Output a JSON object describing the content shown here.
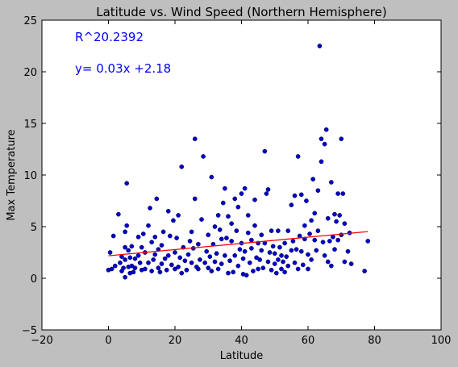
{
  "chart_data": {
    "type": "scatter",
    "title": "Latitude vs. Wind Speed (Northern Hemisphere)",
    "xlabel": "Latitude",
    "ylabel": "Max Temperature",
    "xlim": [
      -20,
      100
    ],
    "ylim": [
      -5,
      25
    ],
    "xticks": [
      "−20",
      "0",
      "20",
      "40",
      "60",
      "80",
      "100"
    ],
    "yticks": [
      "−5",
      "0",
      "5",
      "10",
      "15",
      "20",
      "25"
    ],
    "grid": false,
    "point_color": "#0000cc",
    "regression_color": "#ff0000",
    "annotation_color": "#0000ff",
    "annotations": [
      "R^20.2392",
      "y= 0.03x +2.18"
    ],
    "regression": {
      "slope": 0.03,
      "intercept": 2.18,
      "x_range": [
        0,
        78
      ]
    },
    "series": [
      {
        "points": [
          [
            0,
            0.8
          ],
          [
            0.5,
            2.5
          ],
          [
            1,
            0.9
          ],
          [
            1.5,
            4.1
          ],
          [
            2,
            1.2
          ],
          [
            3,
            6.2
          ],
          [
            3.5,
            1.5
          ],
          [
            4,
            0.7
          ],
          [
            4,
            2.1
          ],
          [
            4.5,
            1.0
          ],
          [
            5,
            0.1
          ],
          [
            5,
            1.8
          ],
          [
            5,
            3.0
          ],
          [
            5,
            4.5
          ],
          [
            5.5,
            5.1
          ],
          [
            5.5,
            9.2
          ],
          [
            6,
            2.7
          ],
          [
            6,
            1.1
          ],
          [
            6.5,
            0.5
          ],
          [
            6.5,
            2.0
          ],
          [
            7,
            1.2
          ],
          [
            7,
            3.1
          ],
          [
            7.5,
            0.6
          ],
          [
            8,
            1.9
          ],
          [
            8,
            1.0
          ],
          [
            9,
            2.2
          ],
          [
            9,
            4.0
          ],
          [
            9.5,
            1.5
          ],
          [
            10,
            0.8
          ],
          [
            10,
            3.0
          ],
          [
            10.5,
            4.3
          ],
          [
            11,
            0.9
          ],
          [
            11,
            2.5
          ],
          [
            12,
            1.5
          ],
          [
            12,
            5.1
          ],
          [
            12.5,
            6.8
          ],
          [
            13,
            0.7
          ],
          [
            13,
            3.5
          ],
          [
            13.5,
            1.8
          ],
          [
            14,
            2.3
          ],
          [
            14,
            4.0
          ],
          [
            14.5,
            7.7
          ],
          [
            15,
            1.0
          ],
          [
            15,
            2.8
          ],
          [
            15.5,
            0.6
          ],
          [
            16,
            1.4
          ],
          [
            16,
            3.2
          ],
          [
            16.5,
            4.5
          ],
          [
            17,
            1.9
          ],
          [
            17.5,
            0.8
          ],
          [
            18,
            6.5
          ],
          [
            18,
            2.2
          ],
          [
            18.5,
            4.1
          ],
          [
            19,
            1.3
          ],
          [
            19.5,
            5.6
          ],
          [
            20,
            0.9
          ],
          [
            20,
            2.5
          ],
          [
            20.5,
            3.9
          ],
          [
            21,
            1.1
          ],
          [
            21,
            6.1
          ],
          [
            21.5,
            2.0
          ],
          [
            22,
            10.8
          ],
          [
            22,
            0.5
          ],
          [
            22.5,
            3.0
          ],
          [
            23,
            1.7
          ],
          [
            23.5,
            0.8
          ],
          [
            24,
            2.3
          ],
          [
            24.5,
            3.6
          ],
          [
            25,
            1.5
          ],
          [
            25,
            4.5
          ],
          [
            25.5,
            2.9
          ],
          [
            26,
            13.5
          ],
          [
            26,
            7.7
          ],
          [
            26.5,
            1.1
          ],
          [
            27,
            0.9
          ],
          [
            27,
            3.3
          ],
          [
            27.5,
            1.8
          ],
          [
            28,
            5.7
          ],
          [
            28.5,
            11.8
          ],
          [
            29,
            1.5
          ],
          [
            29.5,
            2.6
          ],
          [
            30,
            1.0
          ],
          [
            30,
            4.2
          ],
          [
            30.5,
            2.1
          ],
          [
            31,
            0.7
          ],
          [
            31,
            9.8
          ],
          [
            31.5,
            3.3
          ],
          [
            32,
            1.6
          ],
          [
            32,
            5.0
          ],
          [
            32.5,
            2.4
          ],
          [
            33,
            6.1
          ],
          [
            33,
            0.9
          ],
          [
            33.5,
            4.7
          ],
          [
            34,
            3.8
          ],
          [
            34,
            1.4
          ],
          [
            34.5,
            7.3
          ],
          [
            35,
            8.7
          ],
          [
            35,
            2.2
          ],
          [
            35.5,
            3.9
          ],
          [
            36,
            0.5
          ],
          [
            36,
            6.0
          ],
          [
            36.5,
            1.7
          ],
          [
            37,
            3.6
          ],
          [
            37,
            5.3
          ],
          [
            37.5,
            0.6
          ],
          [
            38,
            2.2
          ],
          [
            38,
            7.7
          ],
          [
            38.5,
            4.6
          ],
          [
            39,
            1.2
          ],
          [
            39,
            6.9
          ],
          [
            39.5,
            2.8
          ],
          [
            40,
            3.4
          ],
          [
            40,
            8.2
          ],
          [
            40.5,
            0.4
          ],
          [
            40.5,
            1.9
          ],
          [
            41,
            8.7
          ],
          [
            41,
            2.6
          ],
          [
            41.5,
            0.3
          ],
          [
            42,
            4.4
          ],
          [
            42,
            6.1
          ],
          [
            42.5,
            1.5
          ],
          [
            43,
            2.9
          ],
          [
            43,
            3.7
          ],
          [
            43.5,
            0.7
          ],
          [
            44,
            5.1
          ],
          [
            44,
            7.6
          ],
          [
            44.5,
            2.0
          ],
          [
            45,
            3.4
          ],
          [
            45,
            0.9
          ],
          [
            45.5,
            1.8
          ],
          [
            46,
            4.2
          ],
          [
            46,
            2.7
          ],
          [
            46.5,
            1.0
          ],
          [
            47,
            12.3
          ],
          [
            47,
            3.4
          ],
          [
            47.5,
            8.2
          ],
          [
            48,
            1.6
          ],
          [
            48,
            8.6
          ],
          [
            48.5,
            2.5
          ],
          [
            49,
            0.8
          ],
          [
            49,
            4.6
          ],
          [
            49.5,
            3.1
          ],
          [
            50,
            1.4
          ],
          [
            50,
            2.4
          ],
          [
            50.5,
            0.5
          ],
          [
            51,
            4.6
          ],
          [
            51,
            1.8
          ],
          [
            51.5,
            3.0
          ],
          [
            52,
            0.9
          ],
          [
            52,
            2.2
          ],
          [
            52.5,
            1.6
          ],
          [
            53,
            3.4
          ],
          [
            53,
            0.6
          ],
          [
            53.5,
            2.1
          ],
          [
            54,
            4.6
          ],
          [
            54,
            1.2
          ],
          [
            55,
            2.7
          ],
          [
            55,
            7.1
          ],
          [
            55.5,
            3.6
          ],
          [
            56,
            1.5
          ],
          [
            56,
            8.0
          ],
          [
            56.5,
            2.8
          ],
          [
            57,
            0.9
          ],
          [
            57,
            11.8
          ],
          [
            57.5,
            4.1
          ],
          [
            58,
            2.6
          ],
          [
            58,
            8.1
          ],
          [
            58.5,
            1.3
          ],
          [
            59,
            5.1
          ],
          [
            59,
            3.8
          ],
          [
            59.5,
            7.5
          ],
          [
            60,
            0.9
          ],
          [
            60,
            2.3
          ],
          [
            60.5,
            4.3
          ],
          [
            61,
            5.6
          ],
          [
            61,
            1.8
          ],
          [
            61.5,
            9.6
          ],
          [
            62,
            3.7
          ],
          [
            62,
            6.3
          ],
          [
            62.5,
            2.7
          ],
          [
            63,
            4.6
          ],
          [
            63,
            8.5
          ],
          [
            63.5,
            22.5
          ],
          [
            64,
            13.5
          ],
          [
            64,
            11.3
          ],
          [
            64.5,
            3.5
          ],
          [
            65,
            2.2
          ],
          [
            65,
            13.0
          ],
          [
            65.5,
            14.4
          ],
          [
            66,
            1.6
          ],
          [
            66,
            5.8
          ],
          [
            66.5,
            3.6
          ],
          [
            67,
            9.3
          ],
          [
            67,
            1.2
          ],
          [
            67.5,
            4.0
          ],
          [
            68,
            6.2
          ],
          [
            68,
            2.8
          ],
          [
            68.5,
            5.5
          ],
          [
            69,
            8.2
          ],
          [
            69,
            3.7
          ],
          [
            69.5,
            6.1
          ],
          [
            70,
            13.5
          ],
          [
            70,
            4.2
          ],
          [
            70.5,
            8.2
          ],
          [
            71,
            5.3
          ],
          [
            71,
            1.6
          ],
          [
            72,
            2.6
          ],
          [
            72.5,
            4.4
          ],
          [
            73,
            1.4
          ],
          [
            77,
            0.7
          ],
          [
            78,
            3.6
          ]
        ]
      }
    ]
  }
}
